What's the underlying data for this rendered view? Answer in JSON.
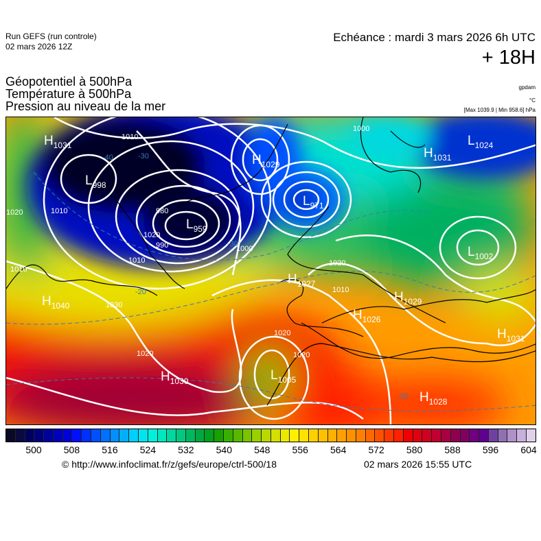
{
  "header": {
    "run_line1": "Run GEFS (run controle)",
    "run_line2": "02 mars 2026 12Z",
    "echeance": "Echéance : mardi 3 mars 2026 6h UTC",
    "lead_time": "+ 18H",
    "fields": [
      "Géopotentiel à 500hPa",
      "Température à 500hPa",
      "Pression au niveau de la mer"
    ],
    "units": [
      "gpdam",
      "°C",
      "[Max 1039.9 | Min 958.6] hPa"
    ]
  },
  "map": {
    "pressure_centers": [
      {
        "type": "H",
        "value": "1031"
      },
      {
        "type": "L",
        "value": "998"
      },
      {
        "type": "L",
        "value": "959"
      },
      {
        "type": "H",
        "value": "1029"
      },
      {
        "type": "L",
        "value": "971"
      },
      {
        "type": "H",
        "value": "1031"
      },
      {
        "type": "L",
        "value": "1024"
      },
      {
        "type": "L",
        "value": "1002"
      },
      {
        "type": "H",
        "value": "1040"
      },
      {
        "type": "H",
        "value": "1027"
      },
      {
        "type": "H",
        "value": "1029"
      },
      {
        "type": "H",
        "value": "1026"
      },
      {
        "type": "H",
        "value": "1031"
      },
      {
        "type": "L",
        "value": "1005"
      },
      {
        "type": "H",
        "value": "1030"
      },
      {
        "type": "H",
        "value": "1028"
      }
    ],
    "isobar_labels": [
      "1010",
      "1020",
      "1010",
      "1000",
      "980",
      "990",
      "1010",
      "1000",
      "1020",
      "1030",
      "1020",
      "1020",
      "1010",
      "1020",
      "1010",
      "1020"
    ],
    "isotherm_labels": [
      "-40",
      "-30",
      "-20",
      "-20",
      "-30"
    ]
  },
  "colorbar": {
    "ticks": [
      "500",
      "508",
      "516",
      "524",
      "532",
      "540",
      "548",
      "556",
      "564",
      "572",
      "580",
      "588",
      "596",
      "604"
    ],
    "colors": [
      "#0a0a28",
      "#0a0a40",
      "#00005e",
      "#00007c",
      "#00009c",
      "#0000bc",
      "#0000dc",
      "#0010ff",
      "#0030ff",
      "#0050ff",
      "#0070ff",
      "#0090ff",
      "#00b0ff",
      "#00d0ff",
      "#00e4f0",
      "#00f0dc",
      "#00e8c0",
      "#00d8a0",
      "#00c880",
      "#00b860",
      "#00a840",
      "#00a020",
      "#18a000",
      "#38b000",
      "#58b800",
      "#78c400",
      "#98d000",
      "#b8d800",
      "#d4e000",
      "#eaea00",
      "#fff000",
      "#ffe000",
      "#ffd000",
      "#ffc000",
      "#ffb000",
      "#ffa000",
      "#ff9000",
      "#ff8000",
      "#ff6800",
      "#ff5000",
      "#ff3800",
      "#ff2000",
      "#f00000",
      "#e00010",
      "#d00020",
      "#c00030",
      "#a80040",
      "#900050",
      "#800060",
      "#700080",
      "#600090",
      "#7040a0",
      "#9070b0",
      "#b090c8",
      "#c8b0dc",
      "#e0d0e8"
    ]
  },
  "footer": {
    "url": "© http://www.infoclimat.fr/z/gefs/europe/ctrl-500/18",
    "date": "02 mars 2026 15:55 UTC"
  }
}
